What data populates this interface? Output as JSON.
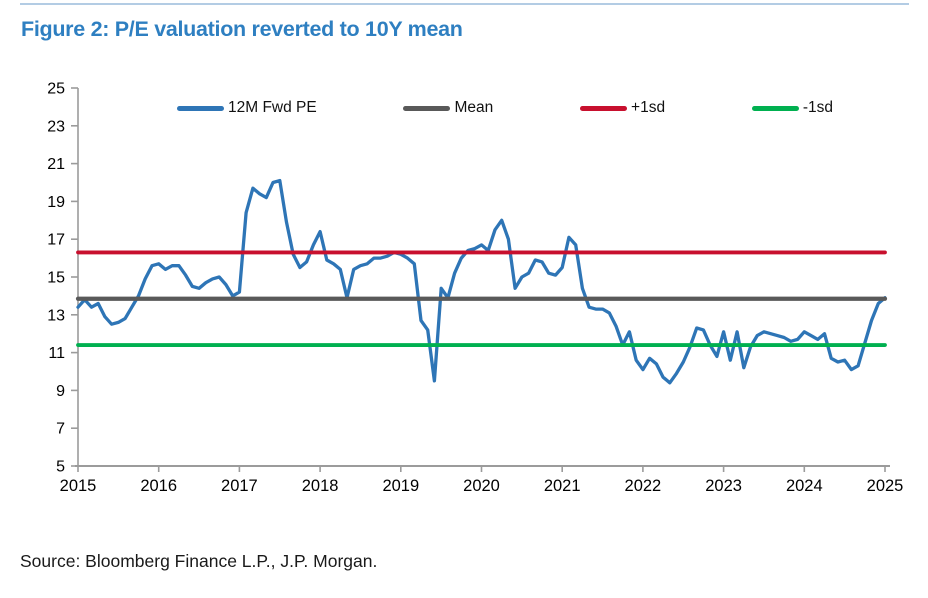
{
  "page": {
    "title": "Figure 2: P/E valuation reverted to 10Y mean",
    "source": "Source: Bloomberg Finance L.P., J.P. Morgan.",
    "title_color": "#2e7fc1"
  },
  "legend": [
    {
      "label": "12M Fwd PE",
      "color": "#2e75b6"
    },
    {
      "label": "Mean",
      "color": "#595959"
    },
    {
      "label": "+1sd",
      "color": "#c8102e"
    },
    {
      "label": "-1sd",
      "color": "#00b050"
    }
  ],
  "chart_data": {
    "type": "line",
    "title": "Figure 2: P/E valuation reverted to 10Y mean",
    "xlabel": "",
    "ylabel": "",
    "xlim": [
      2015,
      2025
    ],
    "ylim": [
      5,
      25
    ],
    "x_ticks": [
      2015,
      2016,
      2017,
      2018,
      2019,
      2020,
      2021,
      2022,
      2023,
      2024,
      2025
    ],
    "y_ticks": [
      5,
      7,
      9,
      11,
      13,
      15,
      17,
      19,
      21,
      23,
      25
    ],
    "grid": false,
    "legend_position": "top",
    "axis_color": "#9b9b9b",
    "tick_label_color": "#000000",
    "series": [
      {
        "name": "12M Fwd PE",
        "kind": "line",
        "color": "#2e75b6",
        "stroke_width": 3.3,
        "start_year": 2015,
        "frequency": "monthly",
        "values": [
          13.4,
          13.8,
          13.4,
          13.6,
          12.9,
          12.5,
          12.6,
          12.8,
          13.4,
          14.0,
          14.9,
          15.6,
          15.7,
          15.4,
          15.6,
          15.6,
          15.1,
          14.5,
          14.4,
          14.7,
          14.9,
          15.0,
          14.6,
          14.0,
          14.2,
          18.4,
          19.7,
          19.4,
          19.2,
          20.0,
          20.1,
          17.9,
          16.2,
          15.5,
          15.8,
          16.7,
          17.4,
          15.9,
          15.7,
          15.4,
          13.9,
          15.4,
          15.6,
          15.7,
          16.0,
          16.0,
          16.1,
          16.3,
          16.2,
          16.0,
          15.7,
          12.7,
          12.2,
          9.5,
          14.4,
          13.9,
          15.2,
          16.0,
          16.4,
          16.5,
          16.7,
          16.4,
          17.5,
          18.0,
          17.0,
          14.4,
          15.0,
          15.2,
          15.9,
          15.8,
          15.2,
          15.1,
          15.5,
          17.1,
          16.7,
          14.4,
          13.4,
          13.3,
          13.3,
          13.1,
          12.4,
          11.4,
          12.1,
          10.6,
          10.1,
          10.7,
          10.4,
          9.7,
          9.4,
          9.9,
          10.5,
          11.3,
          12.3,
          12.2,
          11.4,
          10.8,
          12.1,
          10.6,
          12.1,
          10.2,
          11.3,
          11.9,
          12.1,
          12.0,
          11.9,
          11.8,
          11.6,
          11.7,
          12.1,
          11.9,
          11.7,
          12.0,
          10.7,
          10.5,
          10.6,
          10.1,
          10.3,
          11.5,
          12.7,
          13.6,
          13.9
        ]
      },
      {
        "name": "Mean",
        "kind": "hline",
        "value": 13.85,
        "color": "#595959",
        "stroke_width": 4.2
      },
      {
        "name": "+1sd",
        "kind": "hline",
        "value": 16.3,
        "color": "#c8102e",
        "stroke_width": 3.8
      },
      {
        "name": "-1sd",
        "kind": "hline",
        "value": 11.4,
        "color": "#00b050",
        "stroke_width": 3.8
      }
    ]
  }
}
